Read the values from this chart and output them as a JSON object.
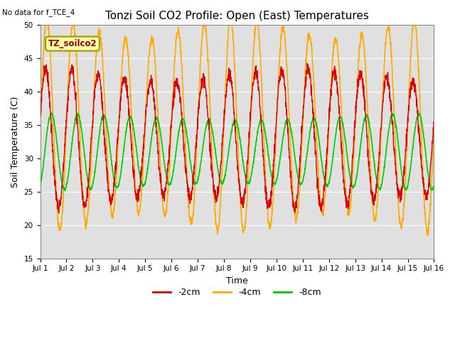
{
  "title": "Tonzi Soil CO2 Profile: Open (East) Temperatures",
  "no_data_text": "No data for f_TCE_4",
  "legend_box_text": "TZ_soilco2",
  "xlabel": "Time",
  "ylabel": "Soil Temperature (C)",
  "ylim": [
    15,
    50
  ],
  "yticks": [
    15,
    20,
    25,
    30,
    35,
    40,
    45,
    50
  ],
  "xtick_labels": [
    "Jul 1",
    "Jul 2",
    "Jul 3",
    "Jul 4",
    "Jul 5",
    "Jul 6",
    "Jul 7",
    "Jul 8",
    "Jul 9",
    "Jul 10",
    "Jul 11",
    "Jul 12",
    "Jul 13",
    "Jul 14",
    "Jul 15",
    "Jul 16"
  ],
  "color_2cm": "#dd0000",
  "color_4cm": "#ffaa00",
  "color_8cm": "#00cc00",
  "legend_labels": [
    "-2cm",
    "-4cm",
    "-8cm"
  ],
  "bg_color": "#e0e0e0",
  "legend_box_bg": "#ffffaa",
  "legend_box_border": "#999900",
  "n_days": 15,
  "samples_per_day": 144,
  "mean_4cm": 35.0,
  "amp_4cm": 14.5,
  "phase_4cm": 0.0,
  "mean_2cm": 33.0,
  "amp_2cm": 9.5,
  "phase_2cm": 0.3,
  "mean_8cm": 31.0,
  "amp_8cm": 5.2,
  "phase_8cm": -1.1
}
